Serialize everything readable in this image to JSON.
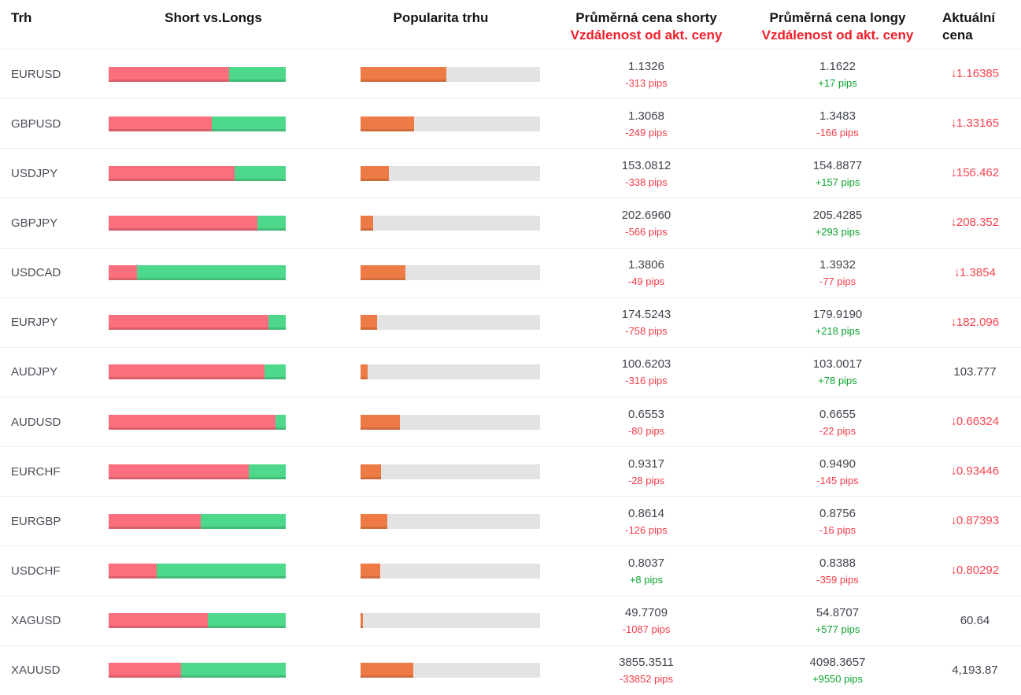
{
  "header": {
    "market": "Trh",
    "short_vs_longs": "Short vs.Longs",
    "popularity": "Popularita trhu",
    "avg_short_title": "Průměrná cena shorty",
    "avg_short_sub": "Vzdálenost od akt. ceny",
    "avg_long_title": "Průměrná cena longy",
    "avg_long_sub": "Vzdálenost od akt. ceny",
    "current": "Aktuální cena"
  },
  "colors": {
    "short_bar": "#fb6e7e",
    "long_bar": "#4dd88c",
    "popularity_bar": "#ee7b46",
    "popularity_track": "#e3e3e3",
    "negative_pips": "#f43b48",
    "positive_pips": "#0ca32e",
    "price_down": "#f9454f",
    "header_red": "#f31e2a"
  },
  "icons": {
    "down_arrow": "↓"
  },
  "rows": [
    {
      "market": "EURUSD",
      "short_pct": 68,
      "popularity_pct": 48,
      "short_price": "1.1326",
      "short_pips": "-313 pips",
      "short_pips_dir": "neg",
      "long_price": "1.1622",
      "long_pips": "+17 pips",
      "long_pips_dir": "pos",
      "current_price": "1.16385",
      "current_dir": "down"
    },
    {
      "market": "GBPUSD",
      "short_pct": 58,
      "popularity_pct": 30,
      "short_price": "1.3068",
      "short_pips": "-249 pips",
      "short_pips_dir": "neg",
      "long_price": "1.3483",
      "long_pips": "-166 pips",
      "long_pips_dir": "neg",
      "current_price": "1.33165",
      "current_dir": "down"
    },
    {
      "market": "USDJPY",
      "short_pct": 71,
      "popularity_pct": 16,
      "short_price": "153.0812",
      "short_pips": "-338 pips",
      "short_pips_dir": "neg",
      "long_price": "154.8877",
      "long_pips": "+157 pips",
      "long_pips_dir": "pos",
      "current_price": "156.462",
      "current_dir": "down"
    },
    {
      "market": "GBPJPY",
      "short_pct": 84,
      "popularity_pct": 7,
      "short_price": "202.6960",
      "short_pips": "-566 pips",
      "short_pips_dir": "neg",
      "long_price": "205.4285",
      "long_pips": "+293 pips",
      "long_pips_dir": "pos",
      "current_price": "208.352",
      "current_dir": "down"
    },
    {
      "market": "USDCAD",
      "short_pct": 16,
      "popularity_pct": 25,
      "short_price": "1.3806",
      "short_pips": "-49 pips",
      "short_pips_dir": "neg",
      "long_price": "1.3932",
      "long_pips": "-77 pips",
      "long_pips_dir": "neg",
      "current_price": "1.3854",
      "current_dir": "down"
    },
    {
      "market": "EURJPY",
      "short_pct": 90,
      "popularity_pct": 9,
      "short_price": "174.5243",
      "short_pips": "-758 pips",
      "short_pips_dir": "neg",
      "long_price": "179.9190",
      "long_pips": "+218 pips",
      "long_pips_dir": "pos",
      "current_price": "182.096",
      "current_dir": "down"
    },
    {
      "market": "AUDJPY",
      "short_pct": 88,
      "popularity_pct": 4,
      "short_price": "100.6203",
      "short_pips": "-316 pips",
      "short_pips_dir": "neg",
      "long_price": "103.0017",
      "long_pips": "+78 pips",
      "long_pips_dir": "pos",
      "current_price": "103.777",
      "current_dir": "none"
    },
    {
      "market": "AUDUSD",
      "short_pct": 94,
      "popularity_pct": 22,
      "short_price": "0.6553",
      "short_pips": "-80 pips",
      "short_pips_dir": "neg",
      "long_price": "0.6655",
      "long_pips": "-22 pips",
      "long_pips_dir": "neg",
      "current_price": "0.66324",
      "current_dir": "down"
    },
    {
      "market": "EURCHF",
      "short_pct": 79,
      "popularity_pct": 11.5,
      "short_price": "0.9317",
      "short_pips": "-28 pips",
      "short_pips_dir": "neg",
      "long_price": "0.9490",
      "long_pips": "-145 pips",
      "long_pips_dir": "neg",
      "current_price": "0.93446",
      "current_dir": "down"
    },
    {
      "market": "EURGBP",
      "short_pct": 52,
      "popularity_pct": 15,
      "short_price": "0.8614",
      "short_pips": "-126 pips",
      "short_pips_dir": "neg",
      "long_price": "0.8756",
      "long_pips": "-16 pips",
      "long_pips_dir": "neg",
      "current_price": "0.87393",
      "current_dir": "down"
    },
    {
      "market": "USDCHF",
      "short_pct": 27,
      "popularity_pct": 11,
      "short_price": "0.8037",
      "short_pips": "+8 pips",
      "short_pips_dir": "pos",
      "long_price": "0.8388",
      "long_pips": "-359 pips",
      "long_pips_dir": "neg",
      "current_price": "0.80292",
      "current_dir": "down"
    },
    {
      "market": "XAGUSD",
      "short_pct": 56,
      "popularity_pct": 1.5,
      "short_price": "49.7709",
      "short_pips": "-1087 pips",
      "short_pips_dir": "neg",
      "long_price": "54.8707",
      "long_pips": "+577 pips",
      "long_pips_dir": "pos",
      "current_price": "60.64",
      "current_dir": "none"
    },
    {
      "market": "XAUUSD",
      "short_pct": 41,
      "popularity_pct": 29.5,
      "short_price": "3855.3511",
      "short_pips": "-33852 pips",
      "short_pips_dir": "neg",
      "long_price": "4098.3657",
      "long_pips": "+9550 pips",
      "long_pips_dir": "pos",
      "current_price": "4,193.87",
      "current_dir": "none"
    }
  ]
}
